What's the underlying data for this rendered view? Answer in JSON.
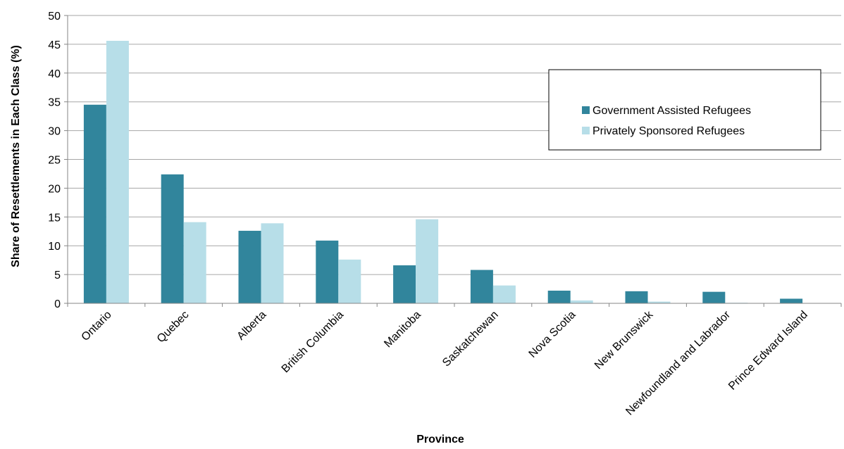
{
  "chart_data": {
    "type": "bar",
    "title": "",
    "xlabel": "Province",
    "ylabel": "Share of Resettlements in Each Class (%)",
    "ylim": [
      0,
      50
    ],
    "yticks": [
      "0",
      "5",
      "10",
      "15",
      "20",
      "25",
      "30",
      "35",
      "40",
      "45",
      "50"
    ],
    "grid": true,
    "legend_position": "top-right",
    "categories": [
      "Ontario",
      "Quebec",
      "Alberta",
      "British Columbia",
      "Manitoba",
      "Saskatchewan",
      "Nova Scotia",
      "New Brunswick",
      "Newfoundland and Labrador",
      "Prince Edward Island"
    ],
    "series": [
      {
        "name": "Government Assisted Refugees",
        "color": "#31859c",
        "values": [
          34.5,
          22.4,
          12.6,
          10.9,
          6.6,
          5.8,
          2.2,
          2.1,
          2.0,
          0.8
        ]
      },
      {
        "name": "Privately Sponsored Refugees",
        "color": "#b7dee8",
        "values": [
          45.6,
          14.1,
          13.9,
          7.6,
          14.6,
          3.1,
          0.5,
          0.3,
          0.1,
          0.0
        ]
      }
    ]
  }
}
